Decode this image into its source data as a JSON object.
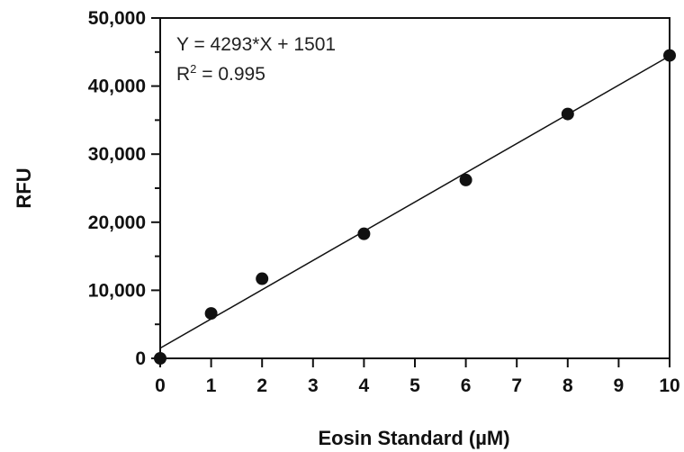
{
  "chart_data": {
    "type": "scatter",
    "title": "",
    "xlabel": "Eosin Standard (µM)",
    "ylabel": "RFU",
    "xlim": [
      0,
      10
    ],
    "ylim": [
      0,
      50000
    ],
    "x_ticks": [
      0,
      1,
      2,
      3,
      4,
      5,
      6,
      7,
      8,
      9,
      10
    ],
    "x_tick_labels": [
      "0",
      "1",
      "2",
      "3",
      "4",
      "5",
      "6",
      "7",
      "8",
      "9",
      "10"
    ],
    "y_ticks": [
      0,
      10000,
      20000,
      30000,
      40000,
      50000
    ],
    "y_tick_labels": [
      "0",
      "10,000",
      "20,000",
      "30,000",
      "40,000",
      "50,000"
    ],
    "grid": false,
    "points": [
      {
        "x": 0,
        "y": 0
      },
      {
        "x": 1,
        "y": 6600
      },
      {
        "x": 2,
        "y": 11700
      },
      {
        "x": 4,
        "y": 18300
      },
      {
        "x": 6,
        "y": 26200
      },
      {
        "x": 8,
        "y": 35900
      },
      {
        "x": 10,
        "y": 44500
      }
    ],
    "fit_line": {
      "slope": 4293,
      "intercept": 1501
    },
    "annotations": {
      "equation": "Y = 4293*X + 1501",
      "r2_prefix": "R",
      "r2_sup": "2",
      "r2_value": " = 0.995"
    },
    "colors": {
      "marker": "#111111",
      "axis": "#111111",
      "fit": "#111111"
    }
  }
}
